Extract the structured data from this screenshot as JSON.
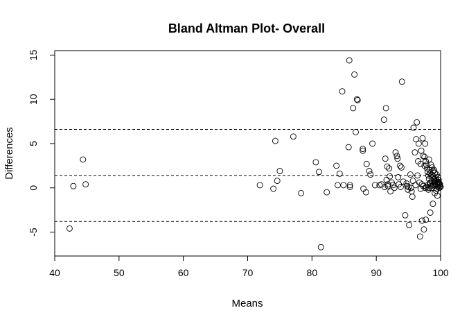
{
  "chart_data": {
    "type": "scatter",
    "title": "Bland Altman Plot- Overall",
    "xlabel": "Means",
    "ylabel": "Differences",
    "xlim": [
      40,
      100
    ],
    "ylim": [
      -7.7,
      15.5
    ],
    "xticks": [
      40,
      50,
      60,
      70,
      80,
      90,
      100
    ],
    "yticks": [
      -5,
      0,
      5,
      10,
      15
    ],
    "reference_lines": [
      6.6,
      1.4,
      -3.8
    ],
    "grid": false,
    "legend": "none",
    "points": [
      [
        42.3,
        -4.6
      ],
      [
        42.9,
        0.2
      ],
      [
        44.4,
        3.2
      ],
      [
        44.8,
        0.4
      ],
      [
        71.9,
        0.3
      ],
      [
        74.0,
        -0.1
      ],
      [
        74.3,
        5.3
      ],
      [
        74.6,
        0.8
      ],
      [
        75.0,
        1.9
      ],
      [
        77.1,
        5.8
      ],
      [
        78.3,
        -0.6
      ],
      [
        80.6,
        2.9
      ],
      [
        81.1,
        1.8
      ],
      [
        81.4,
        -6.7
      ],
      [
        82.3,
        -0.5
      ],
      [
        83.8,
        2.5
      ],
      [
        84.0,
        0.3
      ],
      [
        84.3,
        1.6
      ],
      [
        84.7,
        10.9
      ],
      [
        84.9,
        0.3
      ],
      [
        85.7,
        4.6
      ],
      [
        85.8,
        14.4
      ],
      [
        85.9,
        0.3
      ],
      [
        85.9,
        0.1
      ],
      [
        86.4,
        9.0
      ],
      [
        86.6,
        12.8
      ],
      [
        86.8,
        6.3
      ],
      [
        87.0,
        10.0
      ],
      [
        87.1,
        9.9
      ],
      [
        87.9,
        4.4
      ],
      [
        87.9,
        4.2
      ],
      [
        88.0,
        -0.1
      ],
      [
        88.4,
        -0.5
      ],
      [
        88.5,
        2.7
      ],
      [
        88.9,
        1.9
      ],
      [
        89.1,
        1.5
      ],
      [
        89.4,
        5.0
      ],
      [
        89.8,
        0.3
      ],
      [
        90.5,
        0.3
      ],
      [
        90.8,
        0.4
      ],
      [
        91.2,
        7.7
      ],
      [
        91.3,
        0.1
      ],
      [
        91.4,
        3.3
      ],
      [
        91.5,
        9.0
      ],
      [
        91.6,
        0.9
      ],
      [
        91.7,
        2.4
      ],
      [
        91.8,
        0.4
      ],
      [
        91.8,
        0.2
      ],
      [
        92.0,
        2.2
      ],
      [
        92.1,
        1.3
      ],
      [
        92.2,
        -0.4
      ],
      [
        92.4,
        0.6
      ],
      [
        92.6,
        0.3
      ],
      [
        92.8,
        0.0
      ],
      [
        93.0,
        4.0
      ],
      [
        93.2,
        3.6
      ],
      [
        93.3,
        3.3
      ],
      [
        93.4,
        1.2
      ],
      [
        93.5,
        0.4
      ],
      [
        93.7,
        2.5
      ],
      [
        93.8,
        0.1
      ],
      [
        93.9,
        2.3
      ],
      [
        94.0,
        12.0
      ],
      [
        94.2,
        0.7
      ],
      [
        94.5,
        -3.1
      ],
      [
        94.7,
        0.5
      ],
      [
        94.8,
        0.2
      ],
      [
        94.9,
        -0.2
      ],
      [
        95.0,
        0.1
      ],
      [
        95.1,
        -4.2
      ],
      [
        95.3,
        1.5
      ],
      [
        95.4,
        0.0
      ],
      [
        95.5,
        -0.4
      ],
      [
        95.6,
        -1.0
      ],
      [
        95.7,
        0.8
      ],
      [
        95.8,
        6.8
      ],
      [
        96.0,
        4.0
      ],
      [
        96.1,
        0.3
      ],
      [
        96.2,
        5.5
      ],
      [
        96.3,
        7.4
      ],
      [
        96.4,
        1.4
      ],
      [
        96.5,
        3.0
      ],
      [
        96.6,
        5.0
      ],
      [
        96.7,
        0.6
      ],
      [
        96.8,
        -5.5
      ],
      [
        96.9,
        2.7
      ],
      [
        96.9,
        -0.1
      ],
      [
        97.0,
        4.2
      ],
      [
        97.1,
        -3.7
      ],
      [
        97.1,
        0.4
      ],
      [
        97.2,
        5.6
      ],
      [
        97.3,
        3.6
      ],
      [
        97.3,
        0.2
      ],
      [
        97.4,
        -4.7
      ],
      [
        97.5,
        3.5
      ],
      [
        97.5,
        2.5
      ],
      [
        97.6,
        0.0
      ],
      [
        97.6,
        5.0
      ],
      [
        97.7,
        3.0
      ],
      [
        97.7,
        -3.6
      ],
      [
        97.8,
        2.6
      ],
      [
        97.8,
        0.1
      ],
      [
        97.9,
        2.2
      ],
      [
        98.0,
        1.8
      ],
      [
        98.0,
        0.3
      ],
      [
        98.1,
        1.4
      ],
      [
        98.1,
        -0.2
      ],
      [
        98.2,
        3.2
      ],
      [
        98.2,
        1.0
      ],
      [
        98.3,
        2.0
      ],
      [
        98.3,
        0.5
      ],
      [
        98.4,
        -2.8
      ],
      [
        98.4,
        1.6
      ],
      [
        98.5,
        0.2
      ],
      [
        98.5,
        2.6
      ],
      [
        98.6,
        1.2
      ],
      [
        98.6,
        0.0
      ],
      [
        98.7,
        0.8
      ],
      [
        98.7,
        2.3
      ],
      [
        98.8,
        -1.8
      ],
      [
        98.8,
        1.9
      ],
      [
        98.9,
        0.4
      ],
      [
        98.9,
        1.3
      ],
      [
        99.0,
        0.6
      ],
      [
        99.0,
        2.0
      ],
      [
        99.1,
        -0.6
      ],
      [
        99.1,
        1.7
      ],
      [
        99.2,
        0.2
      ],
      [
        99.2,
        1.1
      ],
      [
        99.3,
        0.9
      ],
      [
        99.3,
        -0.3
      ],
      [
        99.4,
        1.5
      ],
      [
        99.4,
        0.4
      ],
      [
        99.5,
        0.7
      ],
      [
        99.5,
        -0.9
      ],
      [
        99.6,
        1.2
      ],
      [
        99.6,
        0.1
      ],
      [
        99.7,
        0.9
      ],
      [
        99.7,
        0.3
      ],
      [
        99.8,
        0.5
      ],
      [
        99.8,
        0.0
      ],
      [
        99.9,
        0.4
      ],
      [
        99.9,
        0.2
      ],
      [
        100.0,
        0.1
      ],
      [
        99.7,
        0.6
      ],
      [
        99.6,
        0.5
      ],
      [
        99.4,
        -0.1
      ],
      [
        99.2,
        0.7
      ],
      [
        99.0,
        1.0
      ],
      [
        98.8,
        0.3
      ],
      [
        98.6,
        1.5
      ],
      [
        98.4,
        0.6
      ],
      [
        98.2,
        0.0
      ]
    ]
  }
}
